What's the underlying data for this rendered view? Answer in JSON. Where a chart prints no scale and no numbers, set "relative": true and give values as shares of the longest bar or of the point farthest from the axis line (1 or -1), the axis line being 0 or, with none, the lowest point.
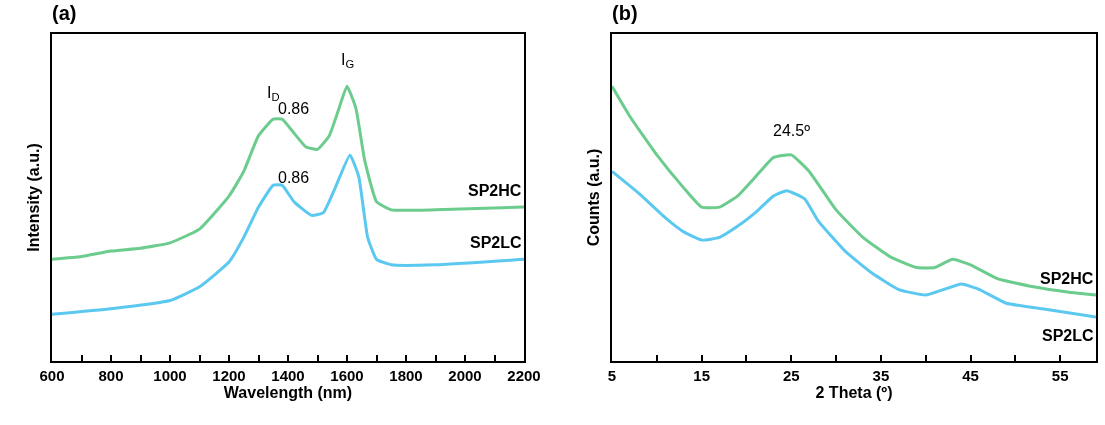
{
  "chart_data": [
    {
      "type": "line",
      "title": "(a)",
      "xlabel": "Wavelength (nm)",
      "ylabel": "Intensity (a.u.)",
      "relative": true,
      "grid": false,
      "legend": false,
      "marker": "none",
      "line_style": "solid",
      "tick_labels": "x",
      "xlim": [
        600,
        2200
      ],
      "xticks": [
        600,
        {
          "value": 700,
          "label": null
        },
        800,
        {
          "value": 900,
          "label": null
        },
        1000,
        {
          "value": 1100,
          "label": null
        },
        1200,
        {
          "value": 1300,
          "label": null
        },
        1400,
        {
          "value": 1500,
          "label": null
        },
        1600,
        {
          "value": 1700,
          "label": null
        },
        1800,
        {
          "value": 1900,
          "label": null
        },
        2000,
        {
          "value": 2100,
          "label": null
        },
        2200
      ],
      "annotations": [
        {
          "text": "I$_{D}$",
          "x": 1350,
          "y": 0.88
        },
        {
          "text": "I$_{G}$",
          "x": 1600,
          "y": 1.0
        },
        {
          "text": "0.86",
          "x": 1420,
          "y": 0.83
        },
        {
          "text": "0.86",
          "x": 1420,
          "y": 0.58
        }
      ],
      "series": [
        {
          "name": "SP2HC",
          "color": "#6ccc8e",
          "x": [
            600,
            700,
            800,
            900,
            1000,
            1100,
            1200,
            1250,
            1300,
            1350,
            1380,
            1420,
            1460,
            1500,
            1540,
            1570,
            1600,
            1630,
            1660,
            1700,
            1750,
            1900,
            2200
          ],
          "values": [
            0.37,
            0.38,
            0.4,
            0.41,
            0.43,
            0.48,
            0.6,
            0.69,
            0.82,
            0.88,
            0.88,
            0.83,
            0.78,
            0.77,
            0.82,
            0.91,
            1.0,
            0.92,
            0.73,
            0.58,
            0.55,
            0.55,
            0.56
          ]
        },
        {
          "name": "SP2LC",
          "color": "#5bc8f0",
          "x": [
            600,
            800,
            1000,
            1100,
            1200,
            1250,
            1300,
            1350,
            1380,
            1420,
            1480,
            1520,
            1560,
            1610,
            1640,
            1670,
            1700,
            1750,
            1900,
            2200
          ],
          "values": [
            0.17,
            0.19,
            0.22,
            0.27,
            0.36,
            0.45,
            0.56,
            0.64,
            0.64,
            0.58,
            0.53,
            0.54,
            0.63,
            0.75,
            0.67,
            0.45,
            0.37,
            0.35,
            0.35,
            0.37
          ]
        }
      ]
    },
    {
      "type": "line",
      "title": "(b)",
      "xlabel": "2 Theta (º)",
      "ylabel": "Counts (a.u.)",
      "relative": true,
      "grid": false,
      "legend": false,
      "marker": "none",
      "line_style": "solid",
      "tick_labels": "x",
      "xlim": [
        5,
        59
      ],
      "xticks": [
        5,
        {
          "value": 10,
          "label": null
        },
        15,
        {
          "value": 20,
          "label": null
        },
        25,
        {
          "value": 30,
          "label": null
        },
        35,
        {
          "value": 40,
          "label": null
        },
        45,
        {
          "value": 50,
          "label": null
        },
        55
      ],
      "annotations": [
        {
          "text": "24.5º",
          "x": 25,
          "y": 0.75
        }
      ],
      "series": [
        {
          "name": "SP2HC",
          "color": "#6ccc8e",
          "x": [
            5,
            7,
            10,
            13,
            15,
            17,
            19,
            21,
            23,
            25,
            27,
            30,
            33,
            36,
            39,
            41,
            43,
            45,
            48,
            52,
            56,
            59
          ],
          "values": [
            1.0,
            0.89,
            0.75,
            0.63,
            0.56,
            0.56,
            0.6,
            0.67,
            0.74,
            0.75,
            0.69,
            0.55,
            0.45,
            0.38,
            0.34,
            0.34,
            0.37,
            0.35,
            0.3,
            0.27,
            0.25,
            0.24
          ]
        },
        {
          "name": "SP2LC",
          "color": "#5bc8f0",
          "x": [
            5,
            8,
            11,
            13,
            15,
            17,
            19,
            21,
            23,
            24.5,
            26.5,
            28,
            31,
            34,
            37,
            40,
            42,
            44,
            46,
            49,
            53,
            59
          ],
          "values": [
            0.69,
            0.61,
            0.52,
            0.47,
            0.44,
            0.45,
            0.49,
            0.54,
            0.6,
            0.62,
            0.59,
            0.51,
            0.4,
            0.32,
            0.26,
            0.24,
            0.26,
            0.28,
            0.26,
            0.21,
            0.19,
            0.16
          ]
        }
      ]
    }
  ]
}
